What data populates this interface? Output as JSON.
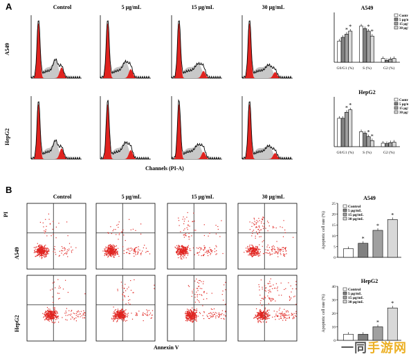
{
  "panel_a": {
    "letter": "A",
    "x_axis_label": "Channels (PI-A)"
  },
  "panel_b": {
    "letter": "B",
    "x_axis_label": "Annexin V",
    "y_axis_label": "PI"
  },
  "conditions": [
    "Control",
    "5 μg/mL",
    "15 μg/mL",
    "30 μg/mL"
  ],
  "cell_lines": [
    "A549",
    "HepG2"
  ],
  "legend": [
    "Control",
    "5 μg/mL",
    "15 μg/mL",
    "30 μg/mL"
  ],
  "colors": {
    "control": "#ffffff",
    "c5": "#808080",
    "c15": "#a0a0a0",
    "c30": "#d8d8d8",
    "histogram_fill": "#e0231f",
    "dots": "#e0231f"
  },
  "watermark": {
    "text_black": "一同",
    "text_gold": "手游网"
  },
  "chart_data": [
    {
      "type": "bar",
      "title": "A549",
      "categories": [
        "G0/G1 (%)",
        "S (%)",
        "G2 (%)"
      ],
      "series": [
        {
          "name": "Control",
          "values": [
            34,
            58,
            6
          ]
        },
        {
          "name": "5 μg/mL",
          "values": [
            40,
            54,
            3
          ]
        },
        {
          "name": "15 μg/mL",
          "values": [
            45,
            50,
            5
          ]
        },
        {
          "name": "30 μg/mL",
          "values": [
            50,
            42,
            6
          ]
        }
      ],
      "significance": [
        [
          false,
          false,
          true,
          true
        ],
        [
          false,
          false,
          true,
          true
        ],
        [
          false,
          false,
          false,
          false
        ]
      ],
      "ylim": [
        0,
        80
      ]
    },
    {
      "type": "bar",
      "title": "HepG2",
      "categories": [
        "G0/G1 (%)",
        "S (%)",
        "G2 (%)"
      ],
      "series": [
        {
          "name": "Control",
          "values": [
            57,
            30,
            7
          ]
        },
        {
          "name": "5 μg/mL",
          "values": [
            57,
            27,
            6
          ]
        },
        {
          "name": "15 μg/mL",
          "values": [
            69,
            20,
            8
          ]
        },
        {
          "name": "30 μg/mL",
          "values": [
            74,
            12,
            9
          ]
        }
      ],
      "significance": [
        [
          false,
          false,
          true,
          true
        ],
        [
          false,
          false,
          true,
          true
        ],
        [
          false,
          false,
          false,
          false
        ]
      ],
      "ylim": [
        0,
        100
      ]
    },
    {
      "type": "bar",
      "title": "A549",
      "ylabel": "Apoptotic cell rate (%)",
      "categories": [
        "Control",
        "5 μg/mL",
        "15 μg/mL",
        "30 μg/mL"
      ],
      "values": [
        4,
        6.5,
        12.5,
        17.5
      ],
      "significance": [
        false,
        true,
        true,
        true
      ],
      "ylim": [
        0,
        25
      ],
      "yticks": [
        0,
        5,
        10,
        15,
        20,
        25
      ]
    },
    {
      "type": "bar",
      "title": "HepG2",
      "ylabel": "Apoptotic cell rate (%)",
      "categories": [
        "Control",
        "5 μg/mL",
        "15 μg/mL",
        "30 μg/mL"
      ],
      "values": [
        4.5,
        4.5,
        10,
        24
      ],
      "significance": [
        false,
        false,
        true,
        true
      ],
      "ylim": [
        0,
        40
      ],
      "yticks": [
        0,
        10,
        20,
        30,
        40
      ]
    }
  ]
}
